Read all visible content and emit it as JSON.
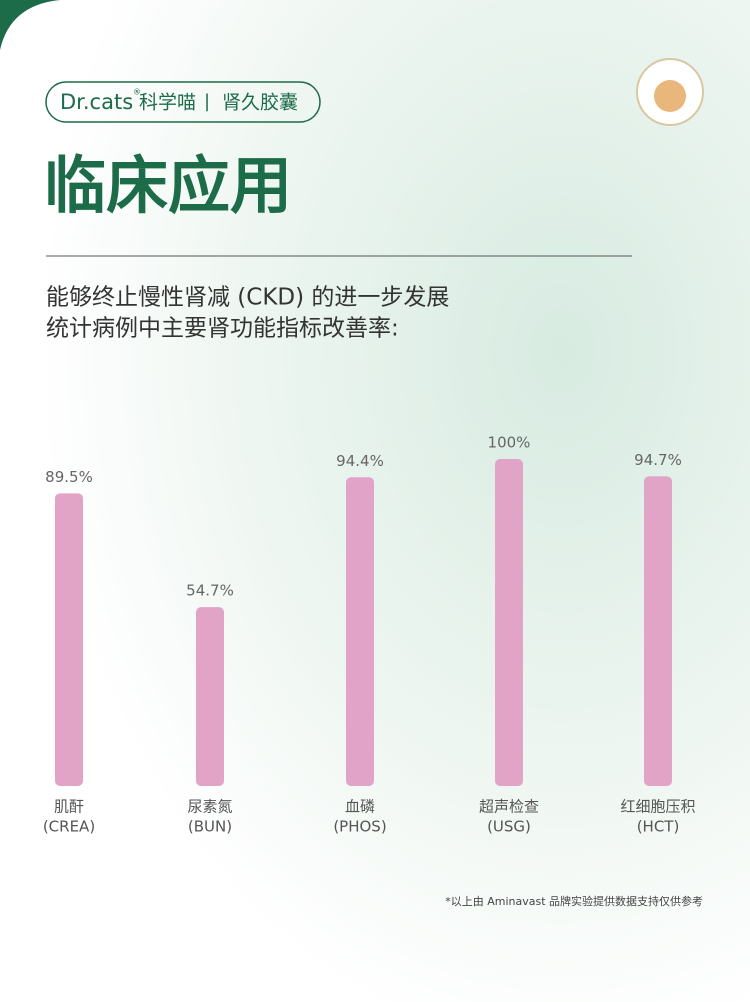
{
  "header": {
    "brand": "Dr.cats",
    "brand_mark": "®",
    "brand_cn": "科学喵",
    "separator": "|",
    "product": "肾久胶囊"
  },
  "chart_data": {
    "type": "bar",
    "title": "临床应用",
    "subtitle": [
      "能够终止慢性肾减 (CKD) 的进一步发展",
      "统计病例中主要肾功能指标改善率:"
    ],
    "categories": [
      "肌酐",
      "尿素氮",
      "血磷",
      "超声检查",
      "红细胞压积"
    ],
    "category_codes": [
      "(CREA)",
      "(BUN)",
      "(PHOS)",
      "(USG)",
      "(HCT)"
    ],
    "values": [
      89.5,
      54.7,
      94.4,
      100,
      94.7
    ],
    "value_labels": [
      "89.5%",
      "54.7%",
      "94.4%",
      "100%",
      "94.7%"
    ],
    "color": "#e1a4c6",
    "ylim": [
      0,
      100
    ],
    "footnote": "*以上由 Aminavast 品牌实验提供数据支持仅供参考"
  }
}
